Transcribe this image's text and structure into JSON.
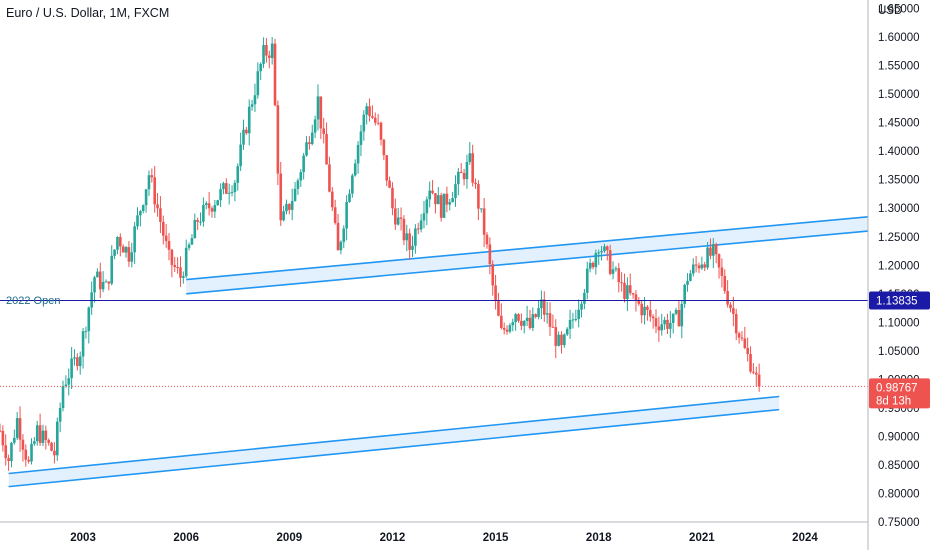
{
  "header": {
    "title": "Euro / U.S. Dollar, 1M, FXCM",
    "currency": "USD"
  },
  "colors": {
    "up": "#26a69a",
    "down": "#ef5350",
    "channel": "#2196f3",
    "channel_fill": "#e3f0fd",
    "open_line": "#1a1aa6",
    "price_line": "#ef5350",
    "text": "#131722",
    "axis": "#b2b5be"
  },
  "levels": {
    "open_2022": {
      "label": "2022 Open",
      "value": 1.13835,
      "tag": "1.13835"
    },
    "current": {
      "value": 0.98767,
      "tag": "0.98767",
      "countdown": "8d 13h"
    }
  },
  "chart_data": {
    "type": "candlestick",
    "title": "Euro / U.S. Dollar, 1M, FXCM",
    "x_range": [
      "2000-08",
      "2025-11"
    ],
    "ylim": [
      0.75,
      1.665
    ],
    "y_ticks": [
      "1.65000",
      "1.60000",
      "1.55000",
      "1.50000",
      "1.45000",
      "1.40000",
      "1.35000",
      "1.30000",
      "1.25000",
      "1.20000",
      "1.15000",
      "1.10000",
      "1.05000",
      "1.00000",
      "0.95000",
      "0.90000",
      "0.85000",
      "0.80000",
      "0.75000"
    ],
    "x_ticks": [
      "2003",
      "2006",
      "2009",
      "2012",
      "2015",
      "2018",
      "2021",
      "2024"
    ],
    "grid": false,
    "price_path": [
      [
        "2000-08",
        0.91
      ],
      [
        "2000-11",
        0.86
      ],
      [
        "2001-02",
        0.93
      ],
      [
        "2001-06",
        0.85
      ],
      [
        "2001-09",
        0.91
      ],
      [
        "2001-12",
        0.89
      ],
      [
        "2002-03",
        0.87
      ],
      [
        "2002-06",
        0.99
      ],
      [
        "2002-12",
        1.05
      ],
      [
        "2003-05",
        1.18
      ],
      [
        "2003-09",
        1.16
      ],
      [
        "2004-01",
        1.25
      ],
      [
        "2004-05",
        1.22
      ],
      [
        "2004-12",
        1.36
      ],
      [
        "2005-03",
        1.3
      ],
      [
        "2005-07",
        1.21
      ],
      [
        "2005-11",
        1.18
      ],
      [
        "2006-05",
        1.28
      ],
      [
        "2006-12",
        1.32
      ],
      [
        "2007-06",
        1.35
      ],
      [
        "2007-11",
        1.47
      ],
      [
        "2008-04",
        1.57
      ],
      [
        "2008-07",
        1.58
      ],
      [
        "2008-10",
        1.27
      ],
      [
        "2009-03",
        1.33
      ],
      [
        "2009-11",
        1.49
      ],
      [
        "2010-06",
        1.22
      ],
      [
        "2010-11",
        1.37
      ],
      [
        "2011-04",
        1.48
      ],
      [
        "2011-08",
        1.44
      ],
      [
        "2012-01",
        1.3
      ],
      [
        "2012-07",
        1.23
      ],
      [
        "2013-02",
        1.34
      ],
      [
        "2013-06",
        1.3
      ],
      [
        "2014-04",
        1.38
      ],
      [
        "2014-09",
        1.26
      ],
      [
        "2015-01",
        1.13
      ],
      [
        "2015-03",
        1.08
      ],
      [
        "2015-08",
        1.12
      ],
      [
        "2016-01",
        1.09
      ],
      [
        "2016-05",
        1.13
      ],
      [
        "2016-12",
        1.05
      ],
      [
        "2017-05",
        1.12
      ],
      [
        "2018-01",
        1.24
      ],
      [
        "2018-04",
        1.21
      ],
      [
        "2018-09",
        1.16
      ],
      [
        "2019-05",
        1.12
      ],
      [
        "2019-09",
        1.1
      ],
      [
        "2020-03",
        1.1
      ],
      [
        "2020-05",
        1.11
      ],
      [
        "2020-08",
        1.18
      ],
      [
        "2021-01",
        1.21
      ],
      [
        "2021-05",
        1.22
      ],
      [
        "2021-11",
        1.13
      ],
      [
        "2022-04",
        1.05
      ],
      [
        "2022-07",
        1.02
      ],
      [
        "2022-08",
        1.0
      ],
      [
        "2022-09",
        0.98767
      ]
    ],
    "channels": [
      {
        "name": "",
        "from": [
          "2006-01",
          1.175
        ],
        "to": [
          "2025-11",
          1.285
        ],
        "width": 0.025
      },
      {
        "name": "",
        "from": [
          "2000-11",
          0.835
        ],
        "to": [
          "2023-04",
          0.97
        ],
        "width": 0.023
      }
    ]
  }
}
